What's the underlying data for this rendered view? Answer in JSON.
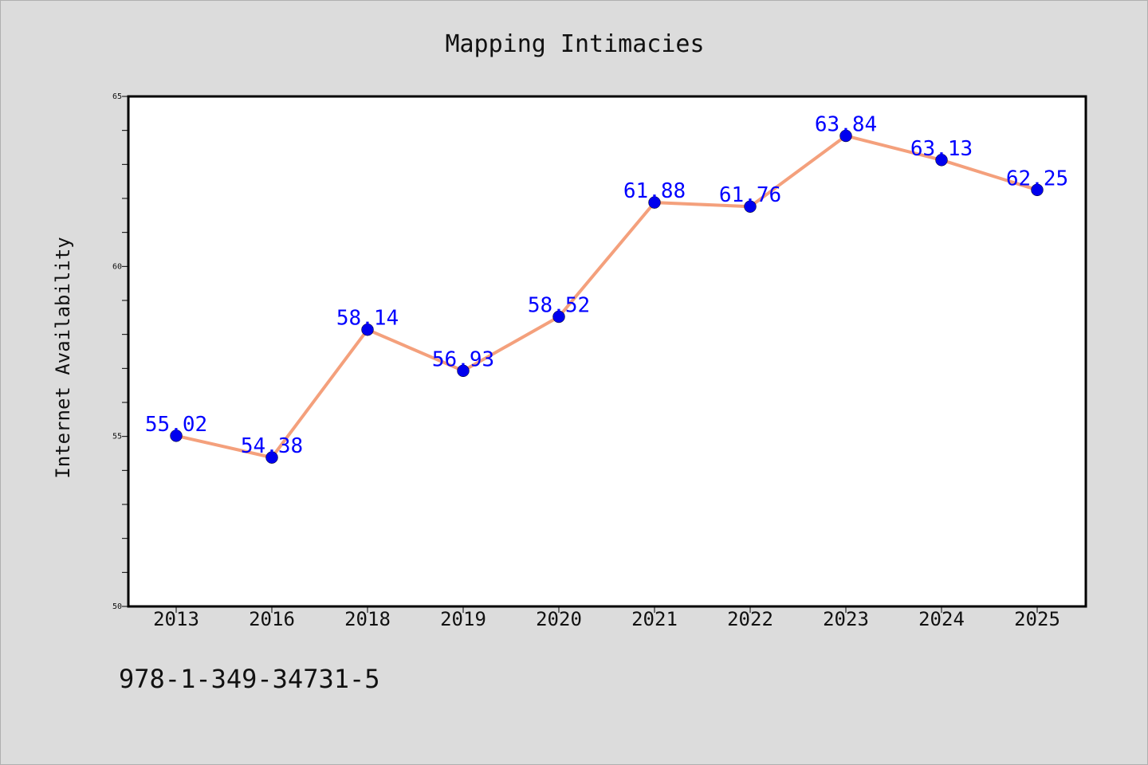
{
  "chart_data": {
    "type": "line",
    "title": "Mapping Intimacies",
    "xlabel": "",
    "ylabel": "Internet Availability",
    "categories": [
      "2013",
      "2016",
      "2018",
      "2019",
      "2020",
      "2021",
      "2022",
      "2023",
      "2024",
      "2025"
    ],
    "series": [
      {
        "values": [
          55.02,
          54.38,
          58.14,
          56.93,
          58.52,
          61.88,
          61.76,
          63.84,
          63.13,
          62.25
        ]
      }
    ],
    "data_labels": [
      "55.02",
      "54.38",
      "58.14",
      "56.93",
      "58.52",
      "61.88",
      "61.76",
      "63.84",
      "63.13",
      "62.25"
    ],
    "ylim": [
      50,
      65
    ],
    "yticks": [
      "50",
      "55",
      "60",
      "65"
    ],
    "grid": false,
    "legend": "none",
    "line_color": "#f4a07c",
    "marker_color": "#0000ee",
    "label_color": "#0000ff"
  },
  "footer": {
    "isbn": "978-1-349-34731-5"
  }
}
